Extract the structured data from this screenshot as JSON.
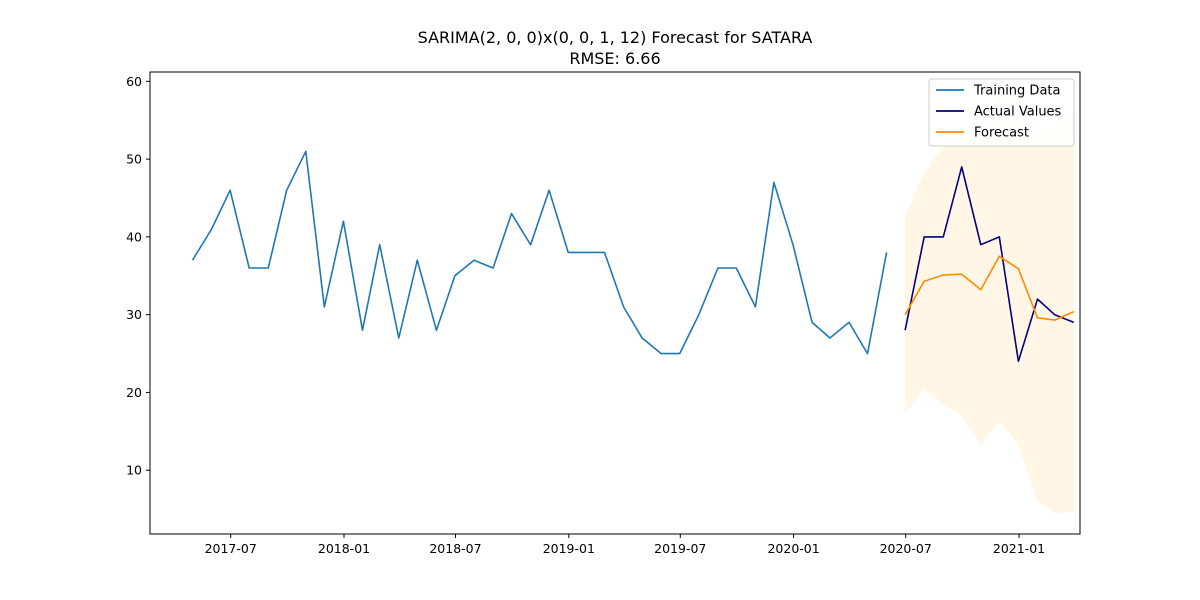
{
  "chart_data": {
    "type": "line",
    "title": "SARIMA(2, 0, 0)x(0, 0, 1, 12) Forecast for SATARA",
    "subtitle": "RMSE: 6.66",
    "xlabel": "",
    "ylabel": "",
    "xlim": [
      "2017-02-20",
      "2021-04-10"
    ],
    "ylim": [
      1.8,
      61.2
    ],
    "x_ticks": [
      "2017-07",
      "2018-01",
      "2018-07",
      "2019-01",
      "2019-07",
      "2020-01",
      "2020-07",
      "2021-01"
    ],
    "y_ticks": [
      10,
      20,
      30,
      40,
      50,
      60
    ],
    "grid": false,
    "legend_position": "top-right",
    "colors": {
      "training": "#1f77b4",
      "actual": "#000080",
      "forecast": "#ff8c00",
      "interval": "#ffa500"
    },
    "series": [
      {
        "name": "Training Data",
        "color": "#1f77b4",
        "x": [
          "2017-04-30",
          "2017-05-31",
          "2017-06-30",
          "2017-07-31",
          "2017-08-31",
          "2017-09-30",
          "2017-10-31",
          "2017-11-30",
          "2017-12-31",
          "2018-01-31",
          "2018-02-28",
          "2018-03-31",
          "2018-04-30",
          "2018-05-31",
          "2018-06-30",
          "2018-07-31",
          "2018-08-31",
          "2018-09-30",
          "2018-10-31",
          "2018-11-30",
          "2018-12-31",
          "2019-01-31",
          "2019-02-28",
          "2019-03-31",
          "2019-04-30",
          "2019-05-31",
          "2019-06-30",
          "2019-07-31",
          "2019-08-31",
          "2019-09-30",
          "2019-10-31",
          "2019-11-30",
          "2019-12-31",
          "2020-01-31",
          "2020-02-29",
          "2020-03-31",
          "2020-04-30",
          "2020-05-31"
        ],
        "values": [
          37,
          41,
          46,
          36,
          36,
          46,
          51,
          31,
          42,
          28,
          39,
          27,
          37,
          28,
          35,
          37,
          36,
          43,
          39,
          46,
          38,
          38,
          38,
          31,
          27,
          25,
          25,
          30,
          36,
          36,
          31,
          47,
          39,
          29,
          27,
          29,
          25,
          38
        ]
      },
      {
        "name": "Actual Values",
        "color": "#000080",
        "x": [
          "2020-06-30",
          "2020-07-31",
          "2020-08-31",
          "2020-09-30",
          "2020-10-31",
          "2020-11-30",
          "2020-12-31",
          "2021-01-31",
          "2021-02-28",
          "2021-03-31"
        ],
        "values": [
          28,
          40,
          40,
          49,
          39,
          40,
          24,
          32,
          30,
          29
        ]
      },
      {
        "name": "Forecast",
        "color": "#ff8c00",
        "x": [
          "2020-06-30",
          "2020-07-31",
          "2020-08-31",
          "2020-09-30",
          "2020-10-31",
          "2020-11-30",
          "2020-12-31",
          "2021-01-31",
          "2021-02-28",
          "2021-03-31"
        ],
        "values": [
          30.0,
          34.3,
          35.1,
          35.2,
          33.2,
          37.5,
          35.9,
          29.6,
          29.3,
          30.4
        ]
      }
    ],
    "confidence_interval": {
      "x": [
        "2020-06-30",
        "2020-07-31",
        "2020-08-31",
        "2020-09-30",
        "2020-10-31",
        "2020-11-30",
        "2020-12-31",
        "2021-01-31",
        "2021-02-28",
        "2021-03-31"
      ],
      "lower": [
        17.3,
        20.4,
        18.5,
        17.1,
        13.3,
        16.3,
        13.2,
        6.0,
        4.5,
        4.6
      ],
      "upper": [
        42.7,
        48.2,
        51.7,
        53.3,
        53.1,
        58.7,
        58.6,
        53.2,
        54.1,
        56.2
      ]
    }
  }
}
